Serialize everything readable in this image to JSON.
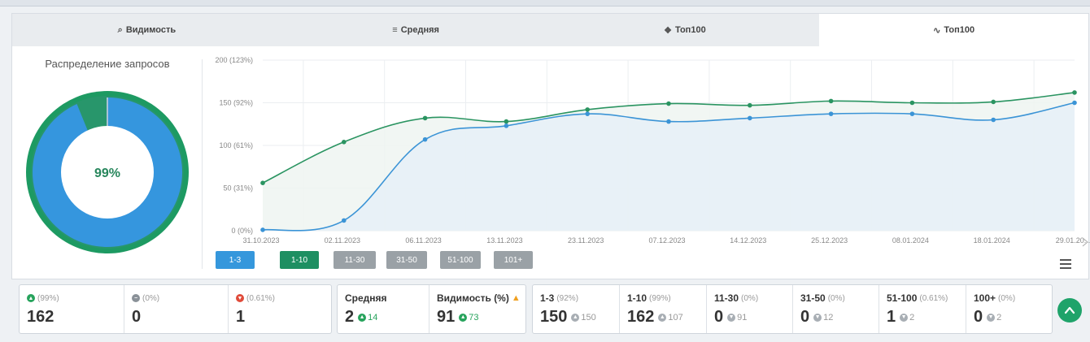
{
  "tabs": [
    {
      "label": "Видимость",
      "icon": "glasses-icon",
      "glyph": "⌕"
    },
    {
      "label": "Средняя",
      "icon": "lines-icon",
      "glyph": "≡"
    },
    {
      "label": "Топ100",
      "icon": "layers-icon",
      "glyph": "❖"
    },
    {
      "label": "Топ100",
      "icon": "trend-icon",
      "glyph": "∿"
    }
  ],
  "active_tab": 3,
  "distribution": {
    "title": "Распределение запросов",
    "center_label": "99%",
    "colors": {
      "ring": "#1d9a62",
      "blue": "#3596de",
      "green": "#28966b",
      "gap": "#a9c3d6"
    }
  },
  "range_buttons": [
    {
      "label": "1-3",
      "color": "#3597dc"
    },
    {
      "label": "1-10",
      "color": "#1e8f62"
    },
    {
      "label": "11-30",
      "color": "#9aa1a6"
    },
    {
      "label": "31-50",
      "color": "#9aa1a6"
    },
    {
      "label": "51-100",
      "color": "#9aa1a6"
    },
    {
      "label": "101+",
      "color": "#9aa1a6"
    }
  ],
  "chart_data": {
    "type": "area",
    "x": [
      "31.10.2023",
      "02.11.2023",
      "06.11.2023",
      "13.11.2023",
      "23.11.2023",
      "07.12.2023",
      "14.12.2023",
      "25.12.2023",
      "08.01.2024",
      "18.01.2024",
      "29.01.20..."
    ],
    "y_ticks": [
      "0 (0%)",
      "50 (31%)",
      "100 (61%)",
      "150 (92%)",
      "200 (123%)"
    ],
    "ylim": [
      0,
      200
    ],
    "grid": true,
    "series": [
      {
        "color": "#2a9461",
        "values": [
          56,
          104,
          132,
          128,
          142,
          149,
          147,
          152,
          150,
          151,
          162
        ]
      },
      {
        "color": "#3b94d6",
        "values": [
          1,
          12,
          107,
          123,
          137,
          128,
          132,
          137,
          137,
          130,
          150
        ]
      }
    ]
  },
  "stats_left": [
    {
      "pct": "(99%)",
      "value": "162",
      "icon": "arrow-up-circle-icon",
      "color": "#27a35c",
      "glyph": "▲"
    },
    {
      "pct": "(0%)",
      "value": "0",
      "icon": "minus-circle-icon",
      "color": "#8a9198",
      "glyph": "−"
    },
    {
      "pct": "(0.61%)",
      "value": "1",
      "icon": "arrow-down-circle-icon",
      "color": "#e04b3a",
      "glyph": "▼"
    }
  ],
  "stats_mid": [
    {
      "label": "Средняя",
      "value": "2",
      "delta": "14",
      "warn": false
    },
    {
      "label": "Видимость (%)",
      "value": "91",
      "delta": "73",
      "warn": true
    }
  ],
  "stats_right": [
    {
      "label": "1-3",
      "pct": "(92%)",
      "value": "150",
      "delta": "150"
    },
    {
      "label": "1-10",
      "pct": "(99%)",
      "value": "162",
      "delta": "107"
    },
    {
      "label": "11-30",
      "pct": "(0%)",
      "value": "0",
      "delta": "91"
    },
    {
      "label": "31-50",
      "pct": "(0%)",
      "value": "0",
      "delta": "12"
    },
    {
      "label": "51-100",
      "pct": "(0.61%)",
      "value": "1",
      "delta": "2"
    },
    {
      "label": "100+",
      "pct": "(0%)",
      "value": "0",
      "delta": "2"
    }
  ]
}
